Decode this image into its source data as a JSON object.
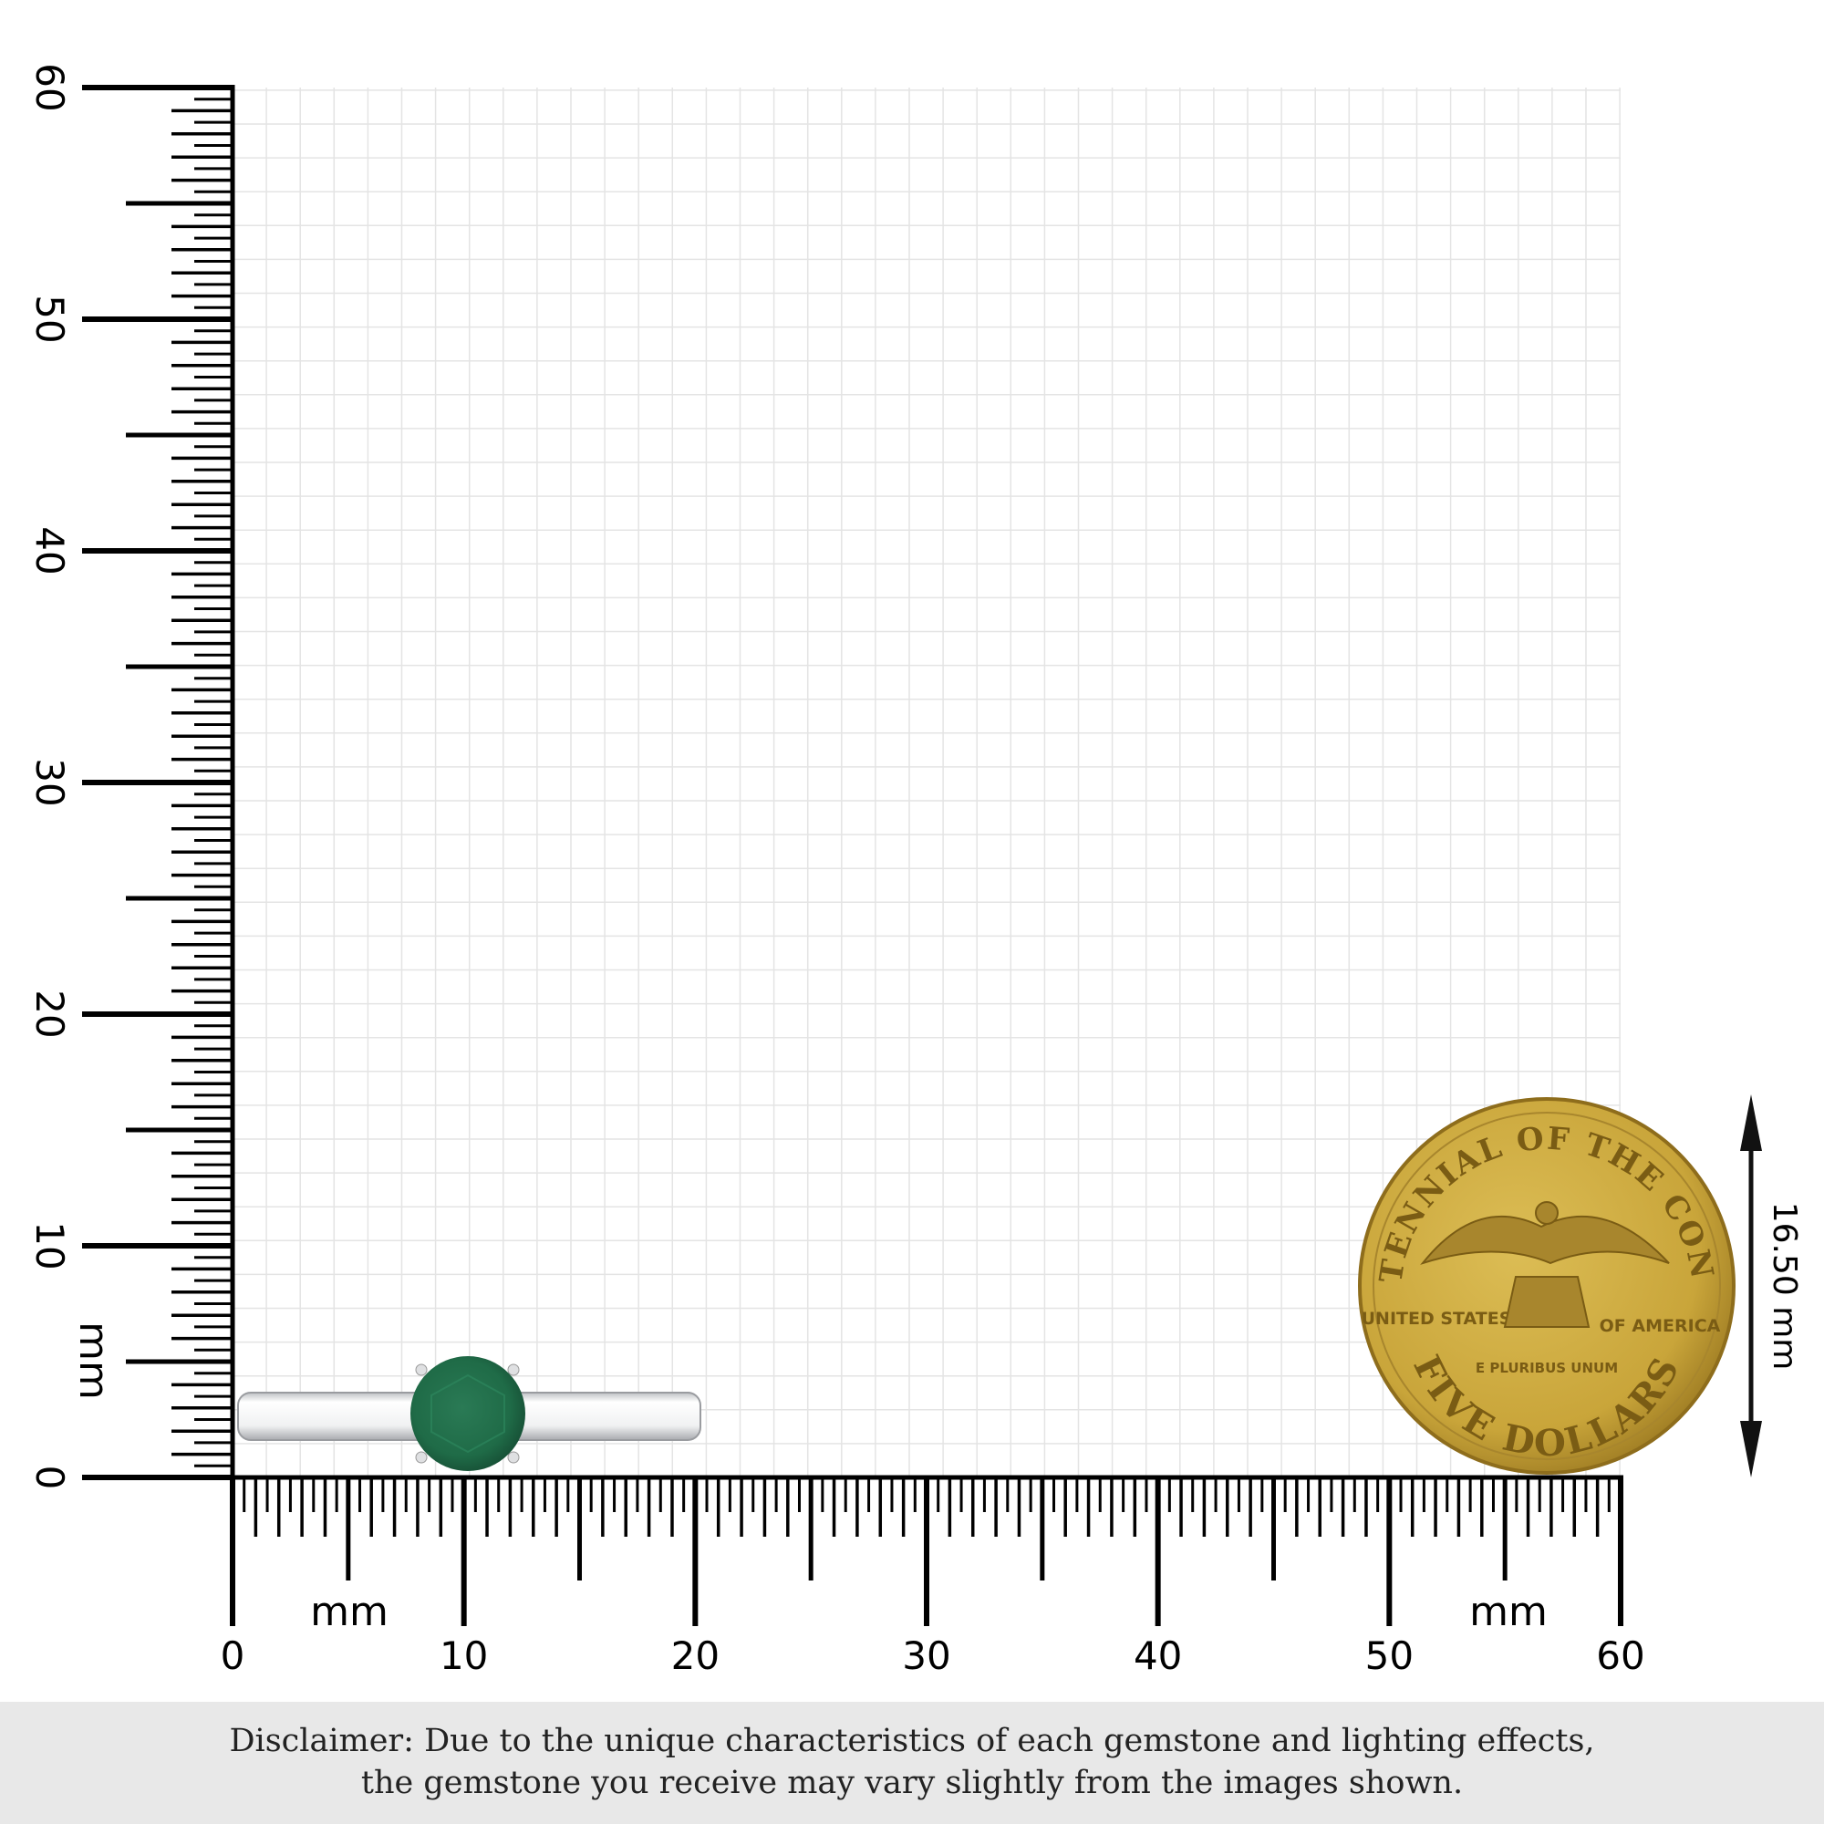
{
  "ruler": {
    "unit_label": "mm",
    "min": 0,
    "max": 60,
    "major_step": 10,
    "x_labels": [
      "0",
      "10",
      "20",
      "30",
      "40",
      "50",
      "60"
    ],
    "y_labels": [
      "0",
      "10",
      "20",
      "30",
      "40",
      "50",
      "60"
    ]
  },
  "ring": {
    "gem_color": "#1f6e4a",
    "metal_color": "#e9eaec"
  },
  "coin": {
    "diameter_label": "16.50 mm",
    "diameter_mm": 16.5,
    "color": "#c9a53a",
    "legend_top": "BICENTENNIAL OF THE CONGRESS",
    "legend_left": "UNITED STATES",
    "legend_right": "OF AMERICA",
    "motto": "E PLURIBUS UNUM",
    "denomination": "FIVE DOLLARS"
  },
  "disclaimer": {
    "line1": "Disclaimer: Due to the unique characteristics of each gemstone and lighting effects,",
    "line2": "the gemstone you receive may vary slightly from the images shown."
  }
}
